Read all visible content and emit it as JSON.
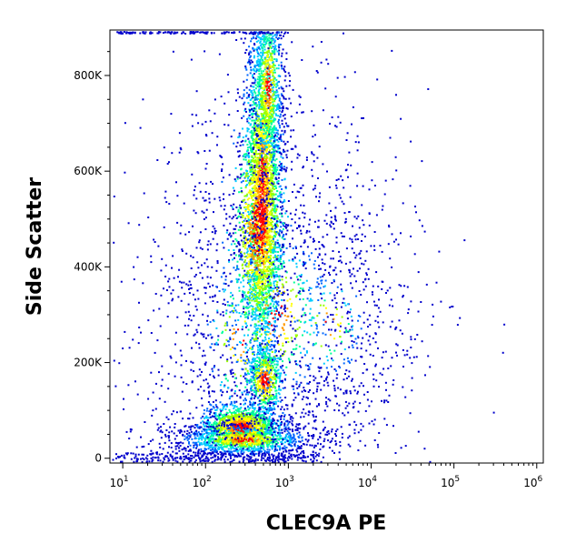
{
  "chart_data": {
    "type": "scatter",
    "title": "",
    "xlabel": "CLEC9A  PE",
    "ylabel": "Side Scatter",
    "x_scale": "log",
    "xlim": [
      7,
      1200000
    ],
    "ylim": [
      -10000,
      895000
    ],
    "x_ticks": [
      {
        "value": 10,
        "base": "10",
        "exp": "1"
      },
      {
        "value": 100,
        "base": "10",
        "exp": "2"
      },
      {
        "value": 1000,
        "base": "10",
        "exp": "3"
      },
      {
        "value": 10000,
        "base": "10",
        "exp": "4"
      },
      {
        "value": 100000,
        "base": "10",
        "exp": "5"
      },
      {
        "value": 1000000,
        "base": "10",
        "exp": "6"
      }
    ],
    "y_ticks": [
      {
        "value": 0,
        "label": "0"
      },
      {
        "value": 200000,
        "label": "200K"
      },
      {
        "value": 400000,
        "label": "400K"
      },
      {
        "value": 600000,
        "label": "600K"
      },
      {
        "value": 800000,
        "label": "800K"
      }
    ],
    "density_colormap": [
      "#0000cc",
      "#0066ff",
      "#00ccff",
      "#00ff99",
      "#99ff00",
      "#ffff00",
      "#ff9900",
      "#ff0000"
    ],
    "populations": [
      {
        "center_x": 270,
        "center_y": 65000,
        "density": "high"
      },
      {
        "center_x": 500,
        "center_y": 160000,
        "density": "medium"
      },
      {
        "center_x": 500,
        "center_y": 520000,
        "density": "high"
      }
    ]
  }
}
